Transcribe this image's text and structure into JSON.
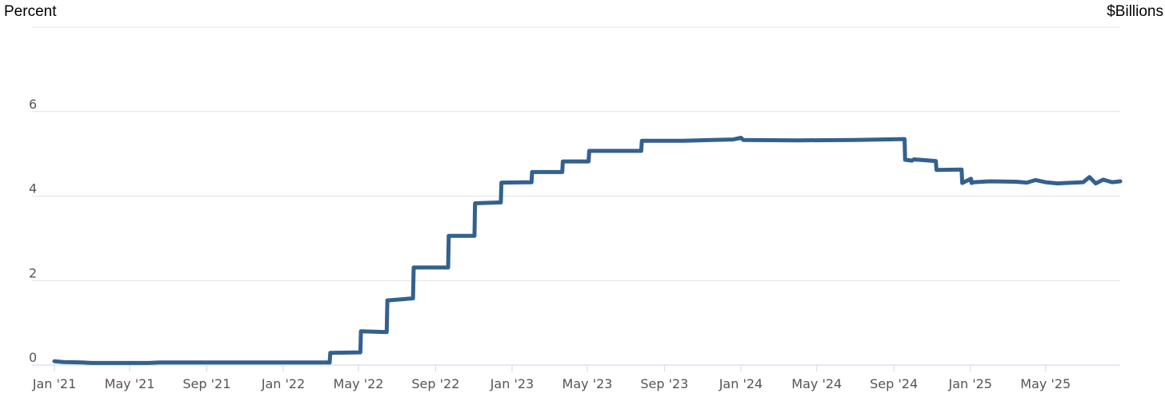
{
  "chart_data": {
    "type": "line",
    "ylabel_left": "Percent",
    "ylabel_right": "$Billions",
    "ylim": [
      0,
      8
    ],
    "y_ticks": [
      "0",
      "2",
      "4",
      "6",
      ""
    ],
    "y_tick_values": [
      0,
      2,
      4,
      6,
      8
    ],
    "x_tick_labels": [
      "Jan '21",
      "May '21",
      "Sep '21",
      "Jan '22",
      "May '22",
      "Sep '22",
      "Jan '23",
      "May '23",
      "Sep '23",
      "Jan '24",
      "May '24",
      "Sep '24",
      "Jan '25",
      "May '25"
    ],
    "x_tick_dates": [
      "2021-01-01",
      "2021-05-01",
      "2021-09-01",
      "2022-01-01",
      "2022-05-01",
      "2022-09-01",
      "2023-01-01",
      "2023-05-01",
      "2023-09-01",
      "2024-01-01",
      "2024-05-01",
      "2024-09-01",
      "2025-01-01",
      "2025-05-01"
    ],
    "xlim": [
      "2021-01-01",
      "2025-08-28"
    ],
    "grid": true,
    "color": "#33618f",
    "series": [
      {
        "x": [
          "2021-01-01",
          "2021-01-15",
          "2021-02-15",
          "2021-03-01",
          "2021-06-01",
          "2021-06-17",
          "2022-03-16",
          "2022-03-17",
          "2022-05-04",
          "2022-05-05",
          "2022-06-15",
          "2022-06-16",
          "2022-07-27",
          "2022-07-28",
          "2022-09-21",
          "2022-09-22",
          "2022-11-02",
          "2022-11-03",
          "2022-12-14",
          "2022-12-15",
          "2023-02-01",
          "2023-02-02",
          "2023-03-22",
          "2023-03-23",
          "2023-05-03",
          "2023-05-04",
          "2023-07-26",
          "2023-07-27",
          "2023-10-01",
          "2023-12-20",
          "2024-01-01",
          "2024-01-05",
          "2024-04-01",
          "2024-06-30",
          "2024-09-18",
          "2024-09-19",
          "2024-09-30",
          "2024-10-03",
          "2024-11-07",
          "2024-11-08",
          "2024-12-18",
          "2024-12-19",
          "2025-01-02",
          "2025-01-03",
          "2025-01-06",
          "2025-02-01",
          "2025-03-15",
          "2025-04-01",
          "2025-04-15",
          "2025-05-01",
          "2025-05-20",
          "2025-06-01",
          "2025-06-30",
          "2025-07-10",
          "2025-07-20",
          "2025-08-01",
          "2025-08-15",
          "2025-08-28"
        ],
        "y": [
          0.09,
          0.07,
          0.06,
          0.05,
          0.05,
          0.06,
          0.06,
          0.29,
          0.3,
          0.8,
          0.78,
          1.53,
          1.58,
          2.31,
          2.31,
          3.06,
          3.06,
          3.83,
          3.85,
          4.32,
          4.33,
          4.57,
          4.57,
          4.82,
          4.82,
          5.07,
          5.07,
          5.31,
          5.31,
          5.34,
          5.38,
          5.33,
          5.32,
          5.33,
          5.35,
          4.86,
          4.84,
          4.87,
          4.83,
          4.62,
          4.63,
          4.31,
          4.41,
          4.31,
          4.33,
          4.35,
          4.34,
          4.32,
          4.38,
          4.33,
          4.3,
          4.31,
          4.33,
          4.45,
          4.3,
          4.39,
          4.33,
          4.35
        ]
      }
    ]
  }
}
